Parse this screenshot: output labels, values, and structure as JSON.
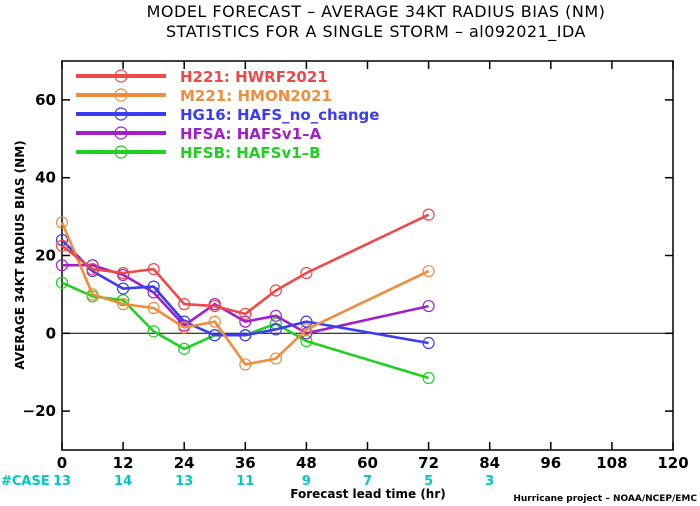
{
  "title_line1": "MODEL FORECAST – AVERAGE 34KT RADIUS BIAS (NM)",
  "title_line2": "STATISTICS FOR A SINGLE STORM – al092021_IDA",
  "case_label": "#CASE",
  "credit": "Hurricane project – NOAA/NCEP/EMC",
  "chart_data": {
    "type": "line",
    "xlabel": "Forecast lead time (hr)",
    "ylabel": "AVERAGE 34KT RADIUS BIAS (NM)",
    "xlim": [
      0,
      120
    ],
    "ylim": [
      -30,
      70
    ],
    "xticks": [
      0,
      12,
      24,
      36,
      48,
      60,
      72,
      84,
      96,
      108,
      120
    ],
    "yticks": [
      -20,
      0,
      20,
      40,
      60
    ],
    "zero_line": true,
    "legend_position": "top-left",
    "case_counts": [
      {
        "x": 0,
        "n": "13"
      },
      {
        "x": 12,
        "n": "14"
      },
      {
        "x": 24,
        "n": "13"
      },
      {
        "x": 36,
        "n": "11"
      },
      {
        "x": 48,
        "n": "9"
      },
      {
        "x": 60,
        "n": "7"
      },
      {
        "x": 72,
        "n": "5"
      },
      {
        "x": 84,
        "n": "3"
      }
    ],
    "series": [
      {
        "name": "H221: HWRF2021",
        "color": "#f04848",
        "x": [
          0,
          6,
          12,
          18,
          24,
          30,
          36,
          42,
          48,
          72
        ],
        "y": [
          22.5,
          16.5,
          15.5,
          16.5,
          7.5,
          7,
          5,
          11,
          15.5,
          30.5
        ]
      },
      {
        "name": "M221: HMON2021",
        "color": "#f08c3c",
        "x": [
          0,
          6,
          12,
          18,
          24,
          30,
          36,
          42,
          48,
          72
        ],
        "y": [
          28.5,
          10,
          7.5,
          6.5,
          1.5,
          3,
          -8,
          -6.5,
          1,
          16
        ]
      },
      {
        "name": "HG16: HAFS_no_change",
        "color": "#3c3cf0",
        "x": [
          0,
          6,
          12,
          18,
          24,
          30,
          36,
          42,
          48,
          72
        ],
        "y": [
          24,
          16,
          11.5,
          12,
          3,
          -0.5,
          -0.5,
          1,
          3,
          -2.5
        ]
      },
      {
        "name": "HFSA: HAFSv1–A",
        "color": "#a020c8",
        "x": [
          0,
          6,
          12,
          18,
          24,
          30,
          36,
          42,
          48,
          72
        ],
        "y": [
          17.5,
          17.5,
          15,
          10.5,
          2,
          7.5,
          3,
          4.5,
          0,
          7
        ]
      },
      {
        "name": "HFSB: HAFSv1–B",
        "color": "#20d020",
        "x": [
          0,
          6,
          12,
          18,
          24,
          30,
          36,
          42,
          48,
          72
        ],
        "y": [
          13,
          9.5,
          8.5,
          0.5,
          -4,
          -0.5,
          -0.5,
          2.5,
          -2,
          -11.5
        ]
      }
    ]
  }
}
